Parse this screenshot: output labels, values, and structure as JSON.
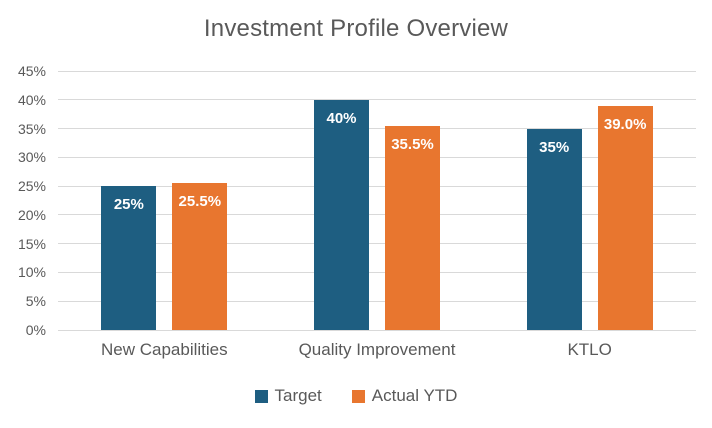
{
  "title": "Investment Profile Overview",
  "chart_data": {
    "type": "bar",
    "title": "Investment Profile Overview",
    "categories": [
      "New Capabilities",
      "Quality Improvement",
      "KTLO"
    ],
    "series": [
      {
        "name": "Target",
        "color": "#1E5E81",
        "values": [
          25,
          40,
          35
        ],
        "data_labels": [
          "25%",
          "40%",
          "35%"
        ]
      },
      {
        "name": "Actual YTD",
        "color": "#E8762F",
        "values": [
          25.5,
          35.5,
          39.0
        ],
        "data_labels": [
          "25.5%",
          "35.5%",
          "39.0%"
        ]
      }
    ],
    "ylim": [
      0,
      45
    ],
    "ytick_step": 5,
    "ytick_labels": [
      "0%",
      "5%",
      "10%",
      "15%",
      "20%",
      "25%",
      "30%",
      "35%",
      "40%",
      "45%"
    ],
    "grid": true,
    "legend_position": "bottom"
  },
  "colors": {
    "background": "#FFFFFF",
    "gridline": "#D9D9D9",
    "title_text": "#595959",
    "axis_text": "#595959",
    "bar_label_text": "#FFFFFF",
    "target_blue": "#1E5E81",
    "actual_orange": "#E8762F"
  }
}
